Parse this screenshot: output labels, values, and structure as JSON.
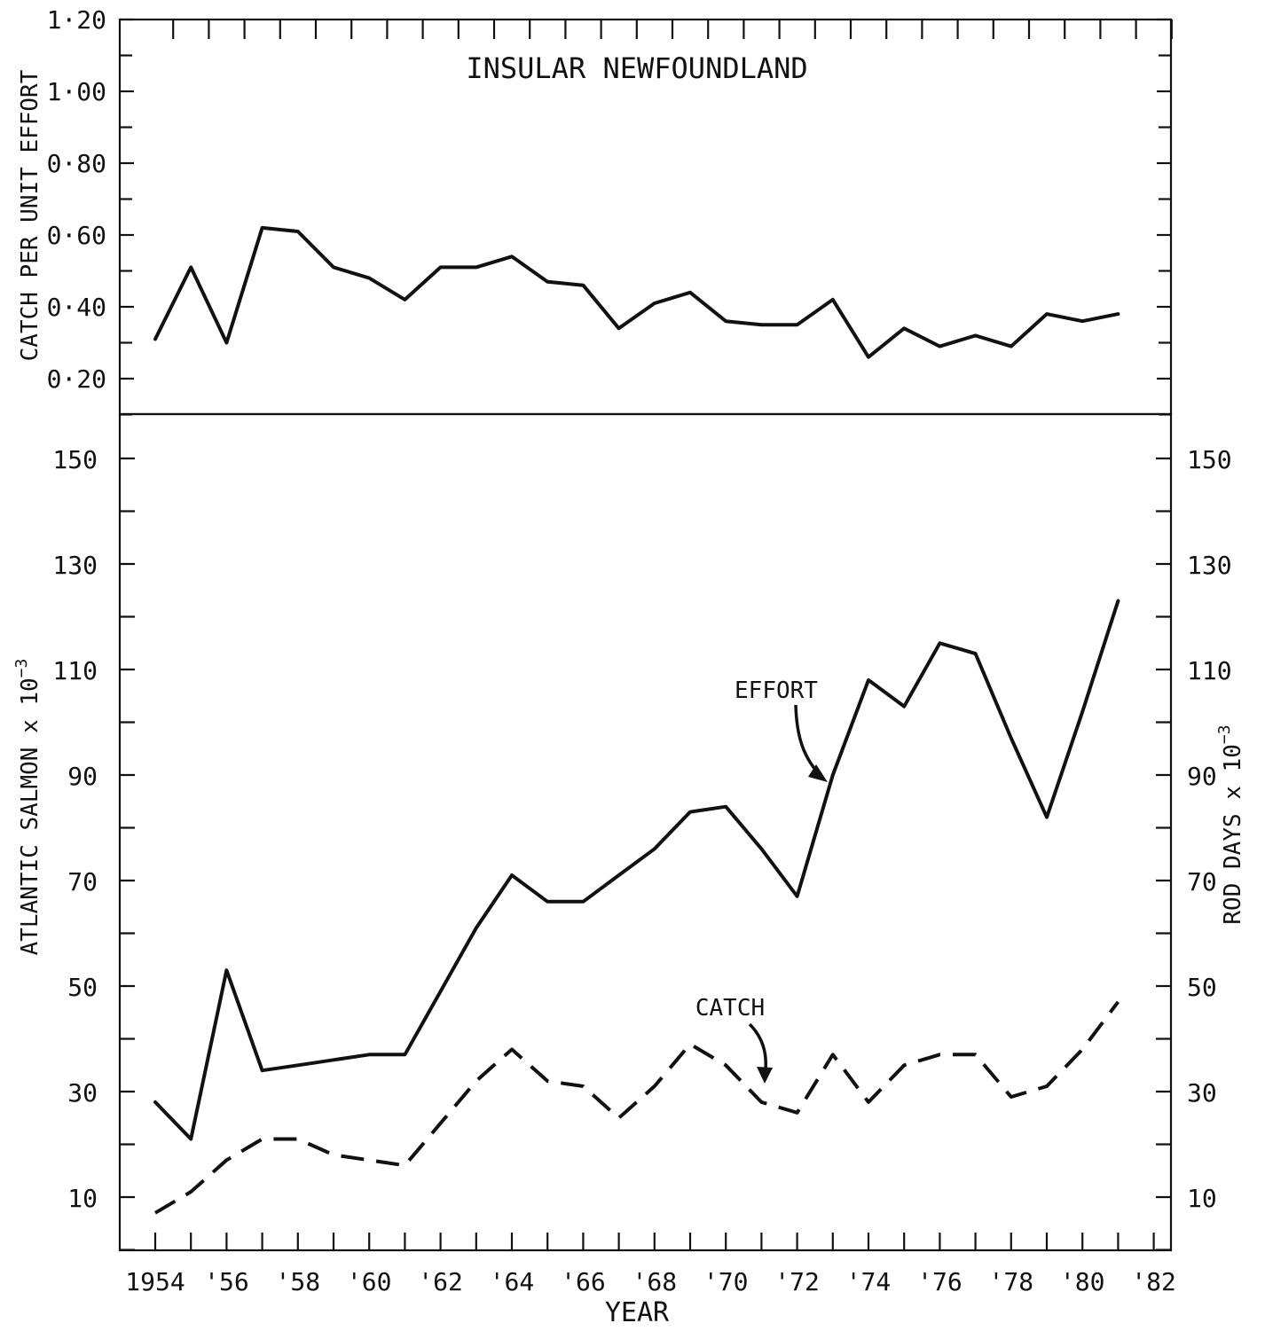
{
  "chart_data": [
    {
      "type": "line",
      "title": "INSULAR NEWFOUNDLAND",
      "ylabel": "CATCH PER UNIT EFFORT",
      "ylim": [
        0.1,
        1.2
      ],
      "yticks": [
        0.2,
        0.4,
        0.6,
        0.8,
        1.0,
        1.2
      ],
      "ytick_labels": [
        "0·20",
        "0·40",
        "0·60",
        "0·80",
        "1·00",
        "1·20"
      ],
      "x": [
        1954,
        1955,
        1956,
        1957,
        1958,
        1959,
        1960,
        1961,
        1962,
        1963,
        1964,
        1965,
        1966,
        1967,
        1968,
        1969,
        1970,
        1971,
        1972,
        1973,
        1974,
        1975,
        1976,
        1977,
        1978,
        1979,
        1980,
        1981
      ],
      "series": [
        {
          "style": "solid",
          "values": [
            0.31,
            0.51,
            0.3,
            0.62,
            0.61,
            0.51,
            0.48,
            0.42,
            0.51,
            0.51,
            0.54,
            0.47,
            0.46,
            0.34,
            0.41,
            0.44,
            0.36,
            0.35,
            0.35,
            0.42,
            0.26,
            0.34,
            0.29,
            0.32,
            0.29,
            0.38,
            0.36,
            0.38
          ]
        }
      ]
    },
    {
      "type": "line",
      "ylabel": "ATLANTIC SALMON x 10",
      "ylabel_exp": "−3",
      "y2label": "ROD DAYS x 10",
      "y2label_exp": "−3",
      "xlabel": "YEAR",
      "ylim": [
        0,
        156
      ],
      "yticks": [
        10,
        30,
        50,
        70,
        90,
        110,
        130,
        150
      ],
      "ytick_labels": [
        "10",
        "30",
        "50",
        "70",
        "90",
        "110",
        "130",
        "150"
      ],
      "x": [
        1954,
        1955,
        1956,
        1957,
        1958,
        1959,
        1960,
        1961,
        1962,
        1963,
        1964,
        1965,
        1966,
        1967,
        1968,
        1969,
        1970,
        1971,
        1972,
        1973,
        1974,
        1975,
        1976,
        1977,
        1978,
        1979,
        1980,
        1981
      ],
      "xticks": [
        1954,
        1956,
        1958,
        1960,
        1962,
        1964,
        1966,
        1968,
        1970,
        1972,
        1974,
        1976,
        1978,
        1980,
        1982
      ],
      "xtick_labels": [
        "1954",
        "'56",
        "'58",
        "'60",
        "'62",
        "'64",
        "'66",
        "'68",
        "'70",
        "'72",
        "'74",
        "'76",
        "'78",
        "'80",
        "'82"
      ],
      "series": [
        {
          "name": "EFFORT",
          "style": "solid",
          "values": [
            28,
            21,
            53,
            34,
            35,
            36,
            37,
            37,
            49,
            61,
            71,
            66,
            66,
            71,
            76,
            83,
            84,
            76,
            67,
            90,
            108,
            103,
            115,
            113,
            97,
            82,
            102,
            123
          ]
        },
        {
          "name": "CATCH",
          "style": "dashed",
          "values": [
            7,
            11,
            17,
            21,
            21,
            18,
            17,
            16,
            24,
            32,
            38,
            32,
            31,
            25,
            31,
            39,
            35,
            28,
            26,
            37,
            28,
            35,
            37,
            37,
            29,
            31,
            38,
            47
          ]
        }
      ]
    }
  ]
}
